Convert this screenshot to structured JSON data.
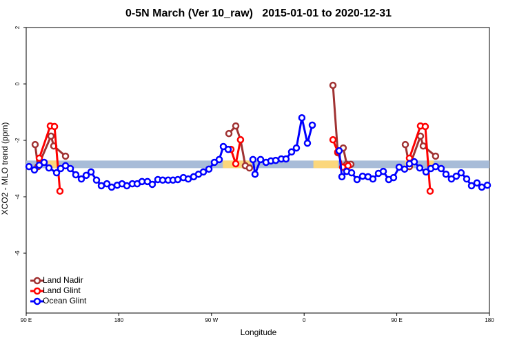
{
  "chart_data": {
    "type": "line",
    "title": "0-5N March (Ver 10_raw)   2015-01-01 to 2020-12-31",
    "x_label": "Longitude",
    "y_label": "XCO2 - MLO trend (ppm)",
    "xlim": [
      90,
      540
    ],
    "ylim": [
      -8,
      2
    ],
    "xticks": [
      {
        "value": 90,
        "label": "90 E"
      },
      {
        "value": 180,
        "label": "180"
      },
      {
        "value": 270,
        "label": "90 W"
      },
      {
        "value": 360,
        "label": "0"
      },
      {
        "value": 450,
        "label": "90 E"
      },
      {
        "value": 540,
        "label": "180"
      }
    ],
    "yticks": [
      -6,
      -4,
      -2,
      0,
      2
    ],
    "legend": "bottom-left",
    "band": {
      "value": -2.85,
      "color": "#a8bcd8",
      "highlight_color": "#fbd77c",
      "highlights": [
        [
          111,
          121
        ],
        [
          281,
          309
        ],
        [
          369,
          393
        ],
        [
          458,
          466
        ],
        [
          480,
          486
        ]
      ]
    },
    "series": [
      {
        "name": "Land Nadir",
        "color": "#a03232",
        "x": [
          98.7,
          101.4,
          114.1,
          116.8,
          128.2,
          null,
          286.9,
          293.6,
          298.2,
          302.9,
          306.9,
          null,
          388.0,
          392.7,
          398.0,
          401.4,
          405.4,
          null,
          458.3,
          462.3,
          473.0,
          475.7,
          487.7
        ],
        "values": [
          -2.15,
          -2.93,
          -1.85,
          -2.2,
          -2.56,
          null,
          -1.76,
          -1.49,
          -1.98,
          -2.9,
          -2.98,
          null,
          -0.05,
          -2.44,
          -2.27,
          -2.85,
          -2.85,
          null,
          -2.15,
          -2.93,
          -1.85,
          -2.2,
          -2.56
        ]
      },
      {
        "name": "Land Glint",
        "color": "#ff0000",
        "x": [
          102.7,
          113.4,
          117.5,
          122.8,
          null,
          288.9,
          293.6,
          298.2,
          null,
          388.0,
          392.7,
          397.4,
          402.7,
          null,
          462.3,
          473.0,
          477.7,
          482.4
        ],
        "values": [
          -2.63,
          -1.49,
          -1.51,
          -3.8,
          null,
          -2.32,
          -2.83,
          -1.98,
          null,
          -1.98,
          -2.41,
          -2.95,
          -2.9,
          null,
          -2.63,
          -1.49,
          -1.51,
          -3.8
        ]
      },
      {
        "name": "Ocean Glint",
        "color": "#0000ff",
        "x": [
          92.7,
          98.0,
          102.7,
          107.4,
          112.1,
          119.5,
          123.5,
          128.2,
          132.9,
          138.2,
          143.6,
          148.3,
          153.0,
          158.3,
          163.0,
          168.4,
          173.0,
          178.4,
          183.1,
          187.8,
          193.1,
          197.8,
          202.5,
          207.8,
          212.5,
          217.9,
          222.6,
          227.9,
          232.6,
          237.3,
          242.7,
          247.4,
          252.7,
          257.4,
          262.1,
          267.5,
          272.8,
          277.5,
          281.5,
          286.2,
          null,
          310.3,
          312.3,
          317.7,
          323.0,
          327.7,
          332.4,
          337.8,
          342.4,
          347.8,
          352.5,
          357.8,
          363.2,
          367.9,
          null,
          394.0,
          396.7,
          401.4,
          406.1,
          411.4,
          416.8,
          422.1,
          426.8,
          432.2,
          436.9,
          442.2,
          446.9,
          452.3,
          457.6,
          462.3,
          467.0,
          472.3,
          478.4,
          483.1,
          487.7,
          493.1,
          497.8,
          503.1,
          507.8,
          512.5,
          517.9,
          522.6,
          527.9,
          532.6,
          538.0
        ],
        "values": [
          -2.93,
          -3.05,
          -2.88,
          -2.78,
          -2.98,
          -3.15,
          -3.0,
          -2.9,
          -3.0,
          -3.22,
          -3.37,
          -3.24,
          -3.12,
          -3.41,
          -3.61,
          -3.54,
          -3.66,
          -3.59,
          -3.54,
          -3.61,
          -3.54,
          -3.54,
          -3.46,
          -3.46,
          -3.56,
          -3.39,
          -3.41,
          -3.41,
          -3.41,
          -3.39,
          -3.32,
          -3.37,
          -3.29,
          -3.2,
          -3.12,
          -3.02,
          -2.78,
          -2.68,
          -2.22,
          -2.32,
          null,
          -2.68,
          -3.2,
          -2.68,
          -2.78,
          -2.73,
          -2.71,
          -2.66,
          -2.66,
          -2.41,
          -2.27,
          -1.2,
          -2.1,
          -1.46,
          null,
          -2.37,
          -3.29,
          -3.1,
          -3.15,
          -3.39,
          -3.27,
          -3.29,
          -3.37,
          -3.17,
          -3.1,
          -3.39,
          -3.32,
          -2.95,
          -3.02,
          -2.83,
          -2.76,
          -2.98,
          -3.12,
          -3.0,
          -2.93,
          -3.0,
          -3.2,
          -3.37,
          -3.27,
          -3.15,
          -3.37,
          -3.61,
          -3.51,
          -3.66,
          -3.59
        ]
      }
    ]
  }
}
